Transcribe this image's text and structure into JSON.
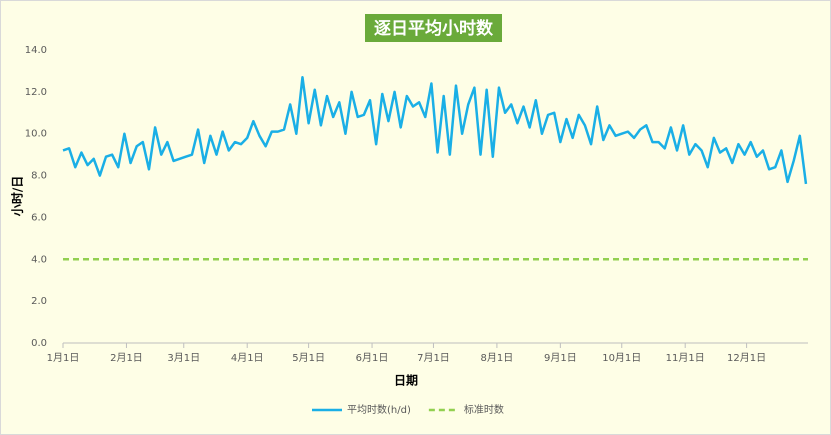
{
  "chart_data": {
    "type": "line",
    "title": "逐日平均小时数",
    "x_label": "日期",
    "y_label": "小时/日",
    "x": [
      0,
      3,
      6,
      9,
      12,
      15,
      18,
      21,
      24,
      27,
      30,
      33,
      36,
      39,
      42,
      45,
      48,
      51,
      54,
      57,
      60,
      63,
      66,
      69,
      72,
      75,
      78,
      81,
      84,
      87,
      90,
      93,
      96,
      99,
      102,
      105,
      108,
      111,
      114,
      117,
      120,
      123,
      126,
      129,
      132,
      135,
      138,
      141,
      144,
      147,
      150,
      153,
      156,
      159,
      162,
      165,
      168,
      171,
      174,
      177,
      180,
      183,
      186,
      189,
      192,
      195,
      198,
      201,
      204,
      207,
      210,
      213,
      216,
      219,
      222,
      225,
      228,
      231,
      234,
      237,
      240,
      243,
      246,
      249,
      252,
      255,
      258,
      261,
      264,
      267,
      270,
      273,
      276,
      279,
      282,
      285,
      288,
      291,
      294,
      297,
      300,
      303,
      306,
      309,
      312,
      315,
      318,
      321,
      324,
      327,
      330,
      333,
      336,
      339,
      342,
      345,
      348,
      351,
      354,
      357,
      360,
      363
    ],
    "series": [
      {
        "name": "平均时数(h/d)",
        "color": "#1aafe6",
        "values": [
          9.2,
          9.3,
          8.4,
          9.1,
          8.5,
          8.8,
          8.0,
          8.9,
          9.0,
          8.4,
          10.0,
          8.6,
          9.4,
          9.6,
          8.3,
          10.3,
          9.0,
          9.6,
          8.7,
          8.8,
          8.9,
          9.0,
          10.2,
          8.6,
          9.9,
          9.0,
          10.1,
          9.2,
          9.6,
          9.5,
          9.8,
          10.6,
          9.9,
          9.4,
          10.1,
          10.1,
          10.2,
          11.4,
          10.0,
          12.7,
          10.5,
          12.1,
          10.4,
          11.8,
          10.8,
          11.5,
          10.0,
          12.0,
          10.8,
          10.9,
          11.6,
          9.5,
          11.9,
          10.6,
          12.0,
          10.3,
          11.8,
          11.3,
          11.5,
          10.8,
          12.4,
          9.1,
          11.8,
          9.0,
          12.3,
          10.0,
          11.4,
          12.2,
          9.0,
          12.1,
          8.9,
          12.2,
          11.0,
          11.4,
          10.5,
          11.3,
          10.3,
          11.6,
          10.0,
          10.9,
          11.0,
          9.6,
          10.7,
          9.8,
          10.9,
          10.4,
          9.5,
          11.3,
          9.7,
          10.4,
          9.9,
          10.0,
          10.1,
          9.8,
          10.2,
          10.4,
          9.6,
          9.6,
          9.3,
          10.3,
          9.2,
          10.4,
          9.0,
          9.5,
          9.2,
          8.4,
          9.8,
          9.1,
          9.3,
          8.6,
          9.5,
          9.0,
          9.6,
          8.9,
          9.2,
          8.3,
          8.4,
          9.2,
          7.7,
          8.7,
          9.9,
          7.6
        ]
      },
      {
        "name": "标准时数",
        "color": "#92d050",
        "dashed": true,
        "x": [
          0,
          364
        ],
        "values": [
          4,
          4
        ]
      }
    ],
    "xlim": [
      0,
      364
    ],
    "xticks": [
      {
        "value": 0,
        "label": "1月1日"
      },
      {
        "value": 31,
        "label": "2月1日"
      },
      {
        "value": 59,
        "label": "3月1日"
      },
      {
        "value": 90,
        "label": "4月1日"
      },
      {
        "value": 120,
        "label": "5月1日"
      },
      {
        "value": 151,
        "label": "6月1日"
      },
      {
        "value": 181,
        "label": "7月1日"
      },
      {
        "value": 212,
        "label": "8月1日"
      },
      {
        "value": 243,
        "label": "9月1日"
      },
      {
        "value": 273,
        "label": "10月1日"
      },
      {
        "value": 304,
        "label": "11月1日"
      },
      {
        "value": 334,
        "label": "12月1日"
      }
    ],
    "ylim": [
      0,
      14
    ],
    "yticks": [
      {
        "value": 0,
        "label": "0.0"
      },
      {
        "value": 2,
        "label": "2.0"
      },
      {
        "value": 4,
        "label": "4.0"
      },
      {
        "value": 6,
        "label": "6.0"
      },
      {
        "value": 8,
        "label": "8.0"
      },
      {
        "value": 10,
        "label": "10.0"
      },
      {
        "value": 12,
        "label": "12.0"
      },
      {
        "value": 14,
        "label": "14.0"
      }
    ],
    "grid": false,
    "legend": "bottom"
  }
}
